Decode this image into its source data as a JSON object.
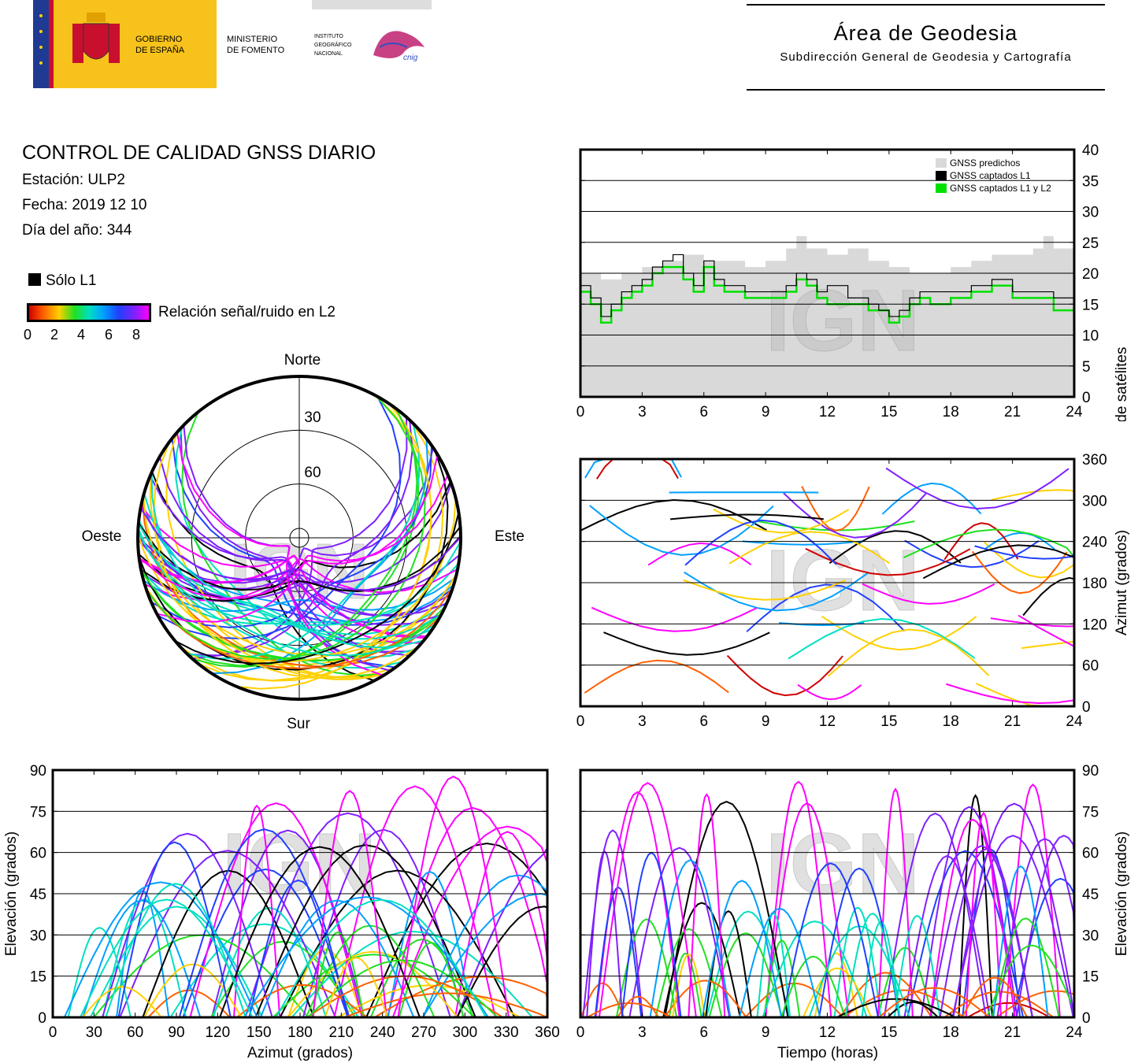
{
  "header": {
    "logos": {
      "gov1": "GOBIERNO",
      "gov2": "DE ESPAÑA",
      "min1": "MINISTERIO",
      "min2": "DE FOMENTO",
      "ign1": "INSTITUTO",
      "ign2": "GEOGRÁFICO",
      "ign3": "NACIONAL",
      "cnig": "cnig"
    },
    "area_title": "Área de Geodesia",
    "area_subtitle": "Subdirección General de Geodesia y Cartografía"
  },
  "info": {
    "title": "CONTROL DE CALIDAD GNSS DIARIO",
    "station": "Estación: ULP2",
    "date": "Fecha: 2019 12 10",
    "doy": "Día del año: 344"
  },
  "legend": {
    "solo_l1": "Sólo L1",
    "snr_label": "Relación señal/ruido en L2",
    "snr_ticks": [
      "0",
      "2",
      "4",
      "6",
      "8"
    ]
  },
  "watermark": "IGN",
  "colors": {
    "predicted": "#d9d9d9",
    "l1": "#000000",
    "l1l2": "#00e000",
    "snr_scale": [
      "#d00000",
      "#ff6000",
      "#ffd000",
      "#20e020",
      "#00e0c0",
      "#00a0ff",
      "#2040ff",
      "#8020ff",
      "#ff00ff"
    ]
  },
  "chart_data": [
    {
      "id": "sat_count",
      "type": "area",
      "xlim": [
        0,
        24
      ],
      "ylim": [
        0,
        40
      ],
      "xticks": [
        "0",
        "3",
        "6",
        "9",
        "12",
        "15",
        "18",
        "21",
        "24"
      ],
      "yticks": [
        "0",
        "5",
        "10",
        "15",
        "20",
        "25",
        "30",
        "35",
        "40"
      ],
      "ylabel": "Número de satélites",
      "grid": true,
      "legend_position": "top-right",
      "series": [
        {
          "name": "GNSS predichos",
          "x": [
            0,
            1,
            2,
            3,
            4,
            5,
            6,
            7,
            8,
            9,
            10,
            10.5,
            11,
            12,
            13,
            14,
            15,
            16,
            17,
            18,
            19,
            20,
            21,
            22,
            22.5,
            23,
            24
          ],
          "values": [
            20,
            19,
            20,
            21,
            22,
            23,
            22,
            22,
            21,
            22,
            24,
            26,
            24,
            23,
            24,
            22,
            21,
            20,
            20,
            21,
            22,
            23,
            23,
            24,
            26,
            24,
            25
          ]
        },
        {
          "name": "GNSS captados L1",
          "x": [
            0,
            0.5,
            1,
            1.5,
            2,
            2.5,
            3,
            3.5,
            4,
            4.5,
            5,
            5.5,
            6,
            6.5,
            7,
            8,
            9,
            10,
            10.5,
            11,
            11.5,
            12,
            13,
            14,
            14.5,
            15,
            15.5,
            16,
            16.5,
            17,
            18,
            19,
            20,
            21,
            22,
            23,
            23.5,
            24
          ],
          "values": [
            18,
            16,
            13,
            15,
            17,
            18,
            19,
            21,
            22,
            23,
            20,
            18,
            22,
            19,
            18,
            17,
            17,
            18,
            20,
            19,
            17,
            18,
            16,
            15,
            14,
            13,
            14,
            16,
            17,
            17,
            17,
            18,
            19,
            17,
            17,
            16,
            16,
            19
          ]
        },
        {
          "name": "GNSS captados L1 y L2",
          "x": [
            0,
            0.5,
            1,
            1.5,
            2,
            2.5,
            3,
            3.5,
            4,
            4.5,
            5,
            5.5,
            6,
            6.5,
            7,
            8,
            9,
            10,
            10.5,
            11,
            11.5,
            12,
            13,
            14,
            14.5,
            15,
            15.5,
            16,
            16.5,
            17,
            18,
            19,
            20,
            21,
            22,
            23,
            23.5,
            24
          ],
          "values": [
            17,
            15,
            12,
            14,
            16,
            17,
            18,
            20,
            21,
            21,
            19,
            17,
            21,
            18,
            17,
            16,
            16,
            17,
            19,
            18,
            16,
            15,
            15,
            14,
            14,
            12,
            13,
            15,
            16,
            15,
            16,
            17,
            18,
            16,
            16,
            14,
            14,
            17
          ]
        }
      ]
    },
    {
      "id": "azimuth_time",
      "type": "scatter",
      "xlim": [
        0,
        24
      ],
      "ylim": [
        0,
        360
      ],
      "xticks": [
        "0",
        "3",
        "6",
        "9",
        "12",
        "15",
        "18",
        "21",
        "24"
      ],
      "yticks": [
        "0",
        "60",
        "120",
        "180",
        "240",
        "300",
        "360"
      ],
      "ylabel": "Azimut (grados)",
      "grid": true
    },
    {
      "id": "skyplot",
      "type": "scatter",
      "ring_labels": [
        "30",
        "60"
      ],
      "directions": {
        "north": "Norte",
        "south": "Sur",
        "east": "Este",
        "west": "Oeste"
      }
    },
    {
      "id": "elev_azimuth",
      "type": "scatter",
      "xlim": [
        0,
        360
      ],
      "ylim": [
        0,
        90
      ],
      "xticks": [
        "0",
        "30",
        "60",
        "90",
        "120",
        "150",
        "180",
        "210",
        "240",
        "270",
        "300",
        "330",
        "360"
      ],
      "yticks": [
        "0",
        "15",
        "30",
        "45",
        "60",
        "75",
        "90"
      ],
      "xlabel": "Azimut (grados)",
      "ylabel": "Elevación (grados)",
      "grid": true
    },
    {
      "id": "elev_time",
      "type": "scatter",
      "xlim": [
        0,
        24
      ],
      "ylim": [
        0,
        90
      ],
      "xticks": [
        "0",
        "3",
        "6",
        "9",
        "12",
        "15",
        "18",
        "21",
        "24"
      ],
      "yticks": [
        "0",
        "15",
        "30",
        "45",
        "60",
        "75",
        "90"
      ],
      "xlabel": "Tiempo (horas)",
      "ylabel": "Elevación (grados)",
      "grid": true
    }
  ]
}
